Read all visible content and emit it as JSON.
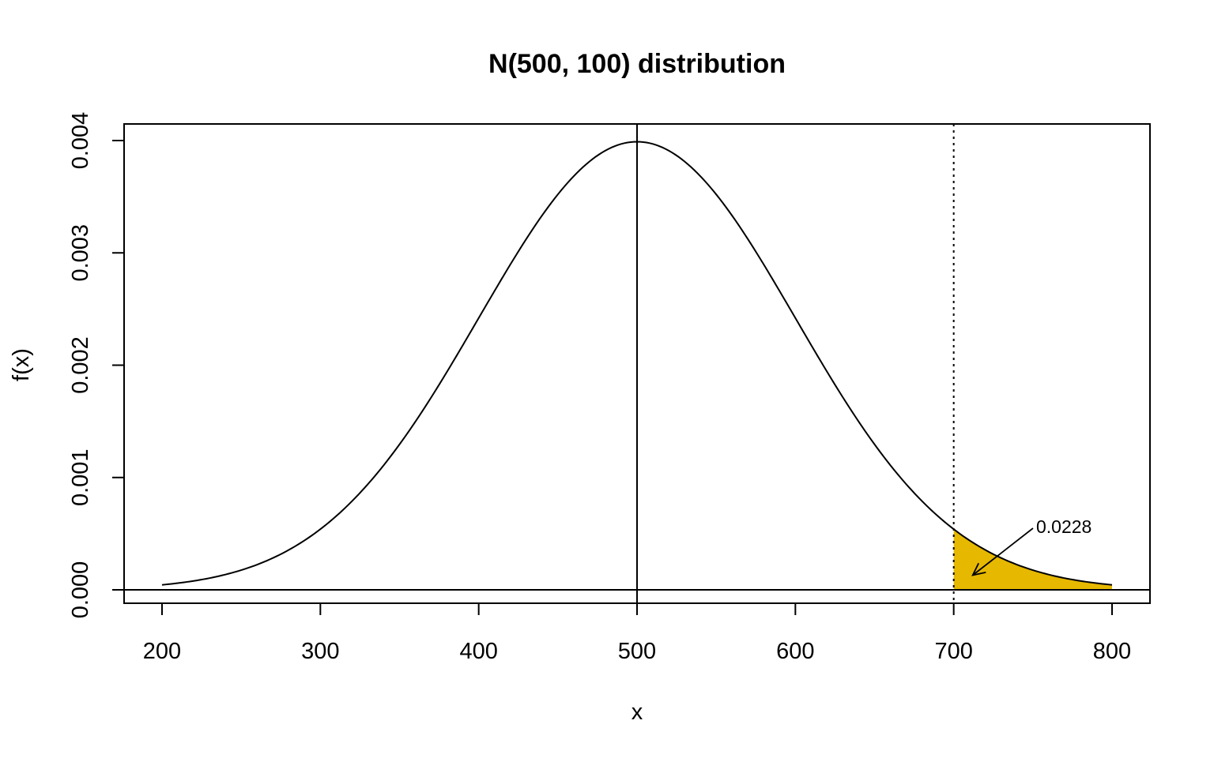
{
  "chart_data": {
    "type": "line",
    "title": "N(500, 100) distribution",
    "xlabel": "x",
    "ylabel": "f(x)",
    "xlim": [
      176,
      1824
    ],
    "ylim": [
      -0.00012,
      0.00415
    ],
    "xticks": [
      200,
      300,
      400,
      500,
      600,
      700,
      800
    ],
    "xtick_labels": [
      "200",
      "300",
      "400",
      "500",
      "600",
      "700",
      "800"
    ],
    "yticks": [
      0.0,
      0.001,
      0.002,
      0.003,
      0.004
    ],
    "ytick_labels": [
      "0.000",
      "0.001",
      "0.002",
      "0.003",
      "0.004"
    ],
    "distribution": {
      "family": "normal",
      "mean": 500,
      "sd": 100
    },
    "curve_range": [
      200,
      800
    ],
    "mean_line_x": 500,
    "cutoff_x": 700,
    "shaded_region": {
      "from": 700,
      "to": 800,
      "color": "#E6B800"
    },
    "annotation": {
      "text": "0.0228",
      "arrow_target_x": 712,
      "arrow_target_y": 0.00013
    },
    "grid": false,
    "legend": "none"
  }
}
